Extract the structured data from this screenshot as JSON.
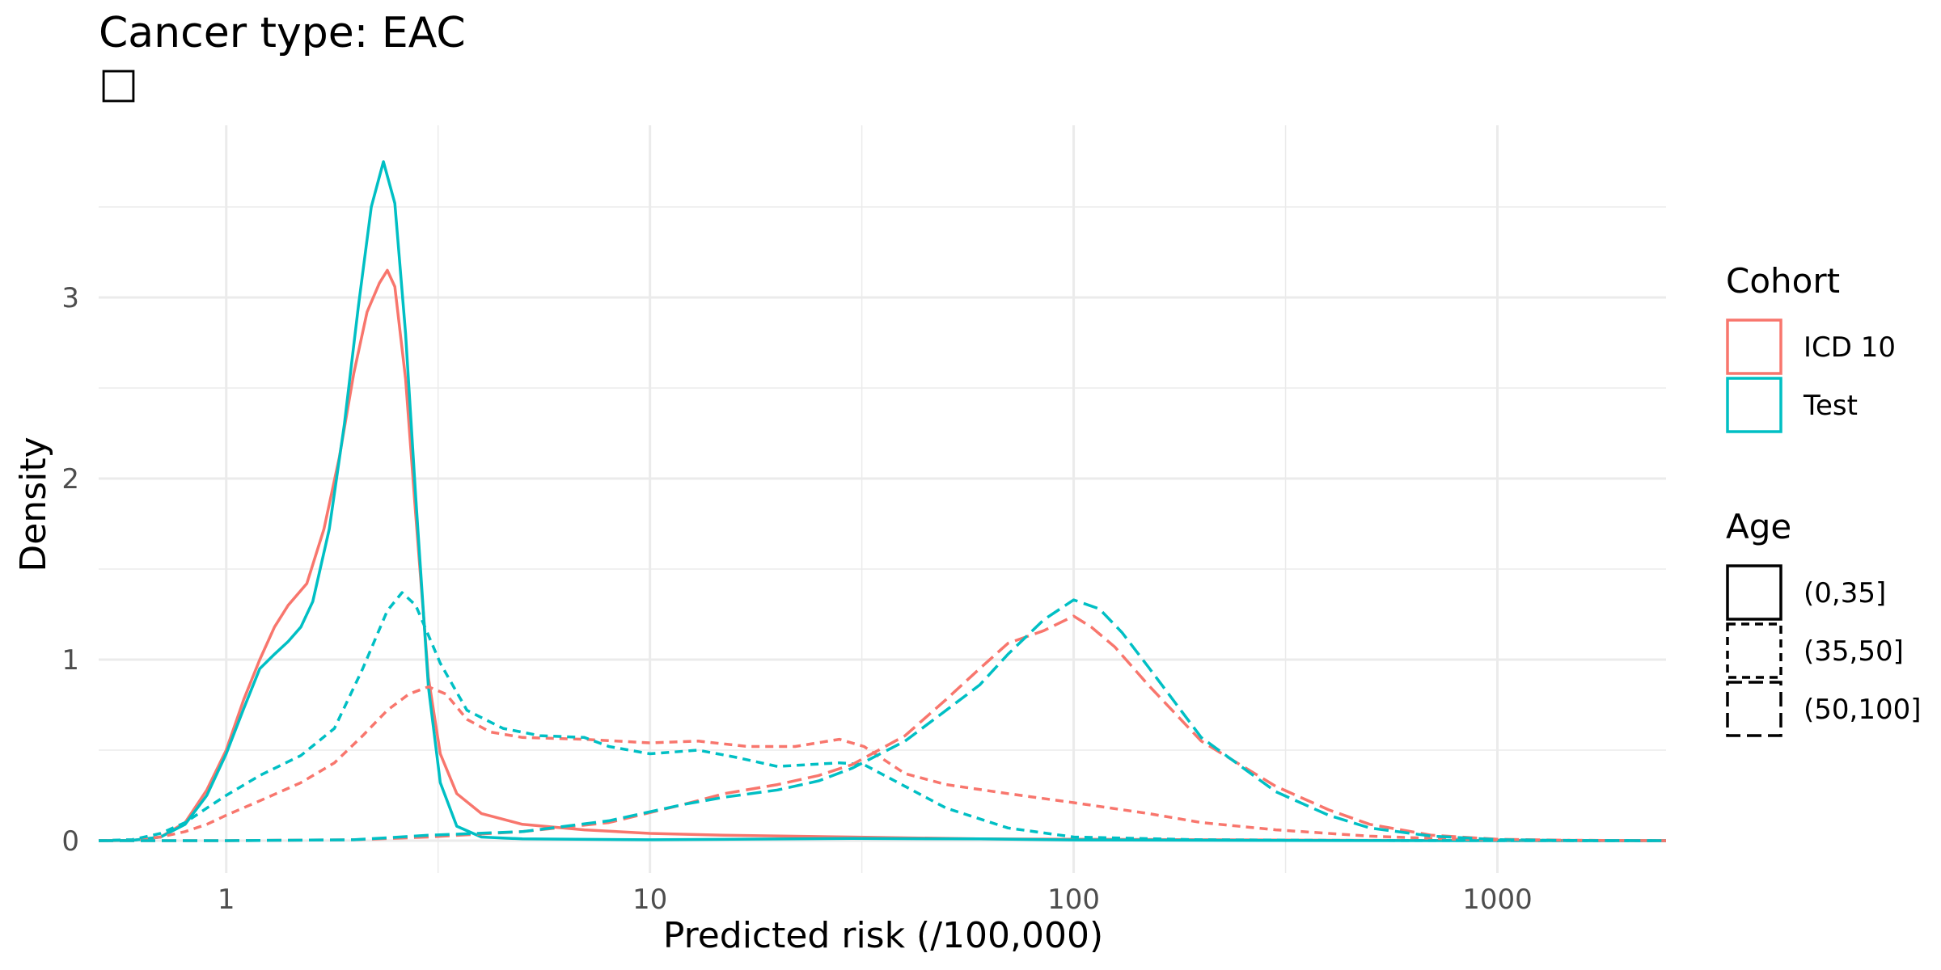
{
  "chart_data": {
    "type": "line",
    "subtype": "density",
    "title": "Cancer type: EAC",
    "subtitle_glyph": "□",
    "xlabel": "Predicted risk (/100,000)",
    "ylabel": "Density",
    "x_scale": "log10",
    "xlim": [
      0.5,
      2500
    ],
    "ylim": [
      0,
      3.75
    ],
    "x_ticks": [
      {
        "value": 1,
        "label": "1"
      },
      {
        "value": 10,
        "label": "10"
      },
      {
        "value": 100,
        "label": "100"
      },
      {
        "value": 1000,
        "label": "1000"
      }
    ],
    "y_ticks": [
      {
        "value": 0,
        "label": "0"
      },
      {
        "value": 1,
        "label": "1"
      },
      {
        "value": 2,
        "label": "2"
      },
      {
        "value": 3,
        "label": "3"
      }
    ],
    "grid": true,
    "legend_position": "right",
    "colors": {
      "ICD 10": "#F8766D",
      "Test": "#00BFC4"
    },
    "legends": [
      {
        "title": "Cohort",
        "type": "color",
        "entries": [
          {
            "label": "ICD 10",
            "color": "#F8766D"
          },
          {
            "label": "Test",
            "color": "#00BFC4"
          }
        ]
      },
      {
        "title": "Age",
        "type": "linetype",
        "entries": [
          {
            "label": "(0,35]",
            "dash": "solid"
          },
          {
            "label": "(35,50]",
            "dash": "dashed"
          },
          {
            "label": "(50,100]",
            "dash": "longdash"
          }
        ]
      }
    ],
    "series": [
      {
        "cohort": "ICD 10",
        "age": "(0,35]",
        "dash": "solid",
        "color": "#F8766D",
        "points": [
          [
            0.5,
            0
          ],
          [
            0.6,
            0.002
          ],
          [
            0.7,
            0.02
          ],
          [
            0.8,
            0.1
          ],
          [
            0.9,
            0.28
          ],
          [
            1,
            0.5
          ],
          [
            1.1,
            0.78
          ],
          [
            1.2,
            1.0
          ],
          [
            1.3,
            1.18
          ],
          [
            1.4,
            1.3
          ],
          [
            1.55,
            1.42
          ],
          [
            1.7,
            1.72
          ],
          [
            1.85,
            2.12
          ],
          [
            2.0,
            2.58
          ],
          [
            2.15,
            2.92
          ],
          [
            2.3,
            3.08
          ],
          [
            2.4,
            3.15
          ],
          [
            2.5,
            3.06
          ],
          [
            2.65,
            2.55
          ],
          [
            2.8,
            1.8
          ],
          [
            3.0,
            0.9
          ],
          [
            3.2,
            0.48
          ],
          [
            3.5,
            0.26
          ],
          [
            4,
            0.15
          ],
          [
            5,
            0.09
          ],
          [
            7,
            0.06
          ],
          [
            10,
            0.04
          ],
          [
            15,
            0.03
          ],
          [
            30,
            0.02
          ],
          [
            60,
            0.01
          ],
          [
            100,
            0.008
          ],
          [
            200,
            0.005
          ],
          [
            500,
            0.002
          ],
          [
            1000,
            0.001
          ],
          [
            2500,
            0
          ]
        ]
      },
      {
        "cohort": "Test",
        "age": "(0,35]",
        "dash": "solid",
        "color": "#00BFC4",
        "points": [
          [
            0.5,
            0
          ],
          [
            0.6,
            0.002
          ],
          [
            0.7,
            0.02
          ],
          [
            0.8,
            0.09
          ],
          [
            0.9,
            0.25
          ],
          [
            1,
            0.48
          ],
          [
            1.1,
            0.73
          ],
          [
            1.2,
            0.95
          ],
          [
            1.3,
            1.03
          ],
          [
            1.4,
            1.1
          ],
          [
            1.5,
            1.18
          ],
          [
            1.6,
            1.32
          ],
          [
            1.75,
            1.72
          ],
          [
            1.9,
            2.3
          ],
          [
            2.05,
            2.95
          ],
          [
            2.2,
            3.5
          ],
          [
            2.35,
            3.75
          ],
          [
            2.5,
            3.52
          ],
          [
            2.65,
            2.8
          ],
          [
            2.8,
            1.9
          ],
          [
            3.0,
            0.85
          ],
          [
            3.2,
            0.32
          ],
          [
            3.5,
            0.08
          ],
          [
            4,
            0.02
          ],
          [
            5,
            0.01
          ],
          [
            10,
            0.005
          ],
          [
            30,
            0.012
          ],
          [
            60,
            0.01
          ],
          [
            100,
            0.004
          ],
          [
            300,
            0.001
          ],
          [
            1000,
            0
          ],
          [
            2500,
            0
          ]
        ]
      },
      {
        "cohort": "ICD 10",
        "age": "(35,50]",
        "dash": "dashed",
        "color": "#F8766D",
        "points": [
          [
            0.5,
            0
          ],
          [
            0.6,
            0.004
          ],
          [
            0.7,
            0.02
          ],
          [
            0.8,
            0.05
          ],
          [
            0.9,
            0.09
          ],
          [
            1,
            0.14
          ],
          [
            1.2,
            0.22
          ],
          [
            1.5,
            0.32
          ],
          [
            1.8,
            0.43
          ],
          [
            2.1,
            0.58
          ],
          [
            2.4,
            0.72
          ],
          [
            2.7,
            0.81
          ],
          [
            3.0,
            0.85
          ],
          [
            3.3,
            0.81
          ],
          [
            3.7,
            0.67
          ],
          [
            4.2,
            0.6
          ],
          [
            5,
            0.57
          ],
          [
            7,
            0.56
          ],
          [
            10,
            0.54
          ],
          [
            13,
            0.55
          ],
          [
            17,
            0.52
          ],
          [
            22,
            0.52
          ],
          [
            28,
            0.56
          ],
          [
            32,
            0.52
          ],
          [
            40,
            0.37
          ],
          [
            50,
            0.31
          ],
          [
            70,
            0.26
          ],
          [
            100,
            0.21
          ],
          [
            150,
            0.15
          ],
          [
            200,
            0.1
          ],
          [
            300,
            0.06
          ],
          [
            500,
            0.025
          ],
          [
            800,
            0.008
          ],
          [
            1000,
            0.003
          ],
          [
            2500,
            0
          ]
        ]
      },
      {
        "cohort": "Test",
        "age": "(35,50]",
        "dash": "dashed",
        "color": "#00BFC4",
        "points": [
          [
            0.5,
            0
          ],
          [
            0.6,
            0.006
          ],
          [
            0.7,
            0.04
          ],
          [
            0.8,
            0.1
          ],
          [
            0.9,
            0.18
          ],
          [
            1,
            0.25
          ],
          [
            1.2,
            0.36
          ],
          [
            1.5,
            0.47
          ],
          [
            1.8,
            0.62
          ],
          [
            2.1,
            0.95
          ],
          [
            2.4,
            1.27
          ],
          [
            2.6,
            1.37
          ],
          [
            2.8,
            1.3
          ],
          [
            3.2,
            0.98
          ],
          [
            3.7,
            0.72
          ],
          [
            4.5,
            0.62
          ],
          [
            5.5,
            0.58
          ],
          [
            7,
            0.57
          ],
          [
            8,
            0.52
          ],
          [
            10,
            0.48
          ],
          [
            13,
            0.5
          ],
          [
            16,
            0.46
          ],
          [
            20,
            0.41
          ],
          [
            28,
            0.43
          ],
          [
            32,
            0.42
          ],
          [
            40,
            0.3
          ],
          [
            50,
            0.18
          ],
          [
            70,
            0.07
          ],
          [
            100,
            0.02
          ],
          [
            200,
            0.005
          ],
          [
            500,
            0.001
          ],
          [
            2500,
            0
          ]
        ]
      },
      {
        "cohort": "ICD 10",
        "age": "(50,100]",
        "dash": "longdash",
        "color": "#F8766D",
        "points": [
          [
            0.5,
            0
          ],
          [
            1,
            0
          ],
          [
            2,
            0.005
          ],
          [
            3,
            0.02
          ],
          [
            5,
            0.05
          ],
          [
            8,
            0.1
          ],
          [
            12,
            0.2
          ],
          [
            15,
            0.26
          ],
          [
            20,
            0.31
          ],
          [
            25,
            0.36
          ],
          [
            30,
            0.42
          ],
          [
            40,
            0.58
          ],
          [
            50,
            0.78
          ],
          [
            60,
            0.95
          ],
          [
            70,
            1.09
          ],
          [
            85,
            1.16
          ],
          [
            100,
            1.24
          ],
          [
            110,
            1.18
          ],
          [
            125,
            1.07
          ],
          [
            150,
            0.86
          ],
          [
            200,
            0.55
          ],
          [
            300,
            0.3
          ],
          [
            400,
            0.17
          ],
          [
            500,
            0.09
          ],
          [
            700,
            0.03
          ],
          [
            1000,
            0.008
          ],
          [
            1500,
            0.002
          ],
          [
            2500,
            0
          ]
        ]
      },
      {
        "cohort": "Test",
        "age": "(50,100]",
        "dash": "longdash",
        "color": "#00BFC4",
        "points": [
          [
            0.5,
            0
          ],
          [
            1,
            0
          ],
          [
            2,
            0.005
          ],
          [
            3,
            0.03
          ],
          [
            5,
            0.05
          ],
          [
            8,
            0.11
          ],
          [
            12,
            0.2
          ],
          [
            15,
            0.24
          ],
          [
            20,
            0.28
          ],
          [
            25,
            0.33
          ],
          [
            30,
            0.4
          ],
          [
            40,
            0.55
          ],
          [
            50,
            0.72
          ],
          [
            60,
            0.86
          ],
          [
            70,
            1.03
          ],
          [
            85,
            1.22
          ],
          [
            100,
            1.33
          ],
          [
            115,
            1.28
          ],
          [
            130,
            1.15
          ],
          [
            150,
            0.96
          ],
          [
            200,
            0.57
          ],
          [
            300,
            0.27
          ],
          [
            400,
            0.14
          ],
          [
            500,
            0.07
          ],
          [
            700,
            0.025
          ],
          [
            1000,
            0.006
          ],
          [
            1500,
            0.001
          ],
          [
            2500,
            0
          ]
        ]
      }
    ]
  }
}
